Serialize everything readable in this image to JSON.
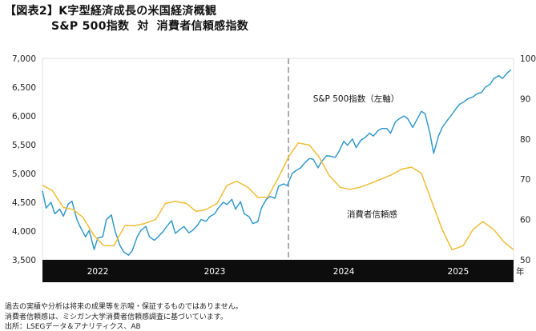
{
  "header": {
    "figure_label": "【図表2】",
    "title": "K字型経済成長の米国経済概観",
    "subtitle_left": "S&P 500指数",
    "subtitle_mid": "対",
    "subtitle_right": "消費者信頼感指数"
  },
  "chart_data": {
    "type": "line",
    "title": "K字型経済成長の米国経済概観",
    "subtitle": "S&P 500指数 対 消費者信頼感指数",
    "x_unit": "年",
    "x_ticks": [
      "2022",
      "2023",
      "2024",
      "2025"
    ],
    "x_range": [
      2022.0,
      2025.83
    ],
    "y_left": {
      "ticks": [
        "3,500",
        "4,000",
        "4,500",
        "5,000",
        "5,500",
        "6,000",
        "6,500",
        "7,000"
      ],
      "range": [
        3500,
        7000
      ]
    },
    "y_right": {
      "ticks": [
        "50",
        "60",
        "70",
        "80",
        "90",
        "100"
      ],
      "range": [
        50,
        100
      ]
    },
    "divider_x": 2024.0,
    "colors": {
      "sp500": "#3399cc",
      "sentiment": "#f2bc35",
      "axis_band": "#0d0d0d",
      "divider": "#999999"
    },
    "series": [
      {
        "name": "S&P 500指数（左軸）",
        "axis": "left",
        "x": [
          2022.0,
          2022.03,
          2022.07,
          2022.1,
          2022.14,
          2022.17,
          2022.21,
          2022.24,
          2022.28,
          2022.31,
          2022.35,
          2022.38,
          2022.42,
          2022.45,
          2022.49,
          2022.52,
          2022.56,
          2022.59,
          2022.63,
          2022.66,
          2022.7,
          2022.73,
          2022.77,
          2022.8,
          2022.84,
          2022.87,
          2022.91,
          2022.94,
          2022.98,
          2023.01,
          2023.05,
          2023.08,
          2023.12,
          2023.15,
          2023.19,
          2023.22,
          2023.26,
          2023.29,
          2023.33,
          2023.36,
          2023.4,
          2023.43,
          2023.47,
          2023.5,
          2023.54,
          2023.57,
          2023.61,
          2023.64,
          2023.68,
          2023.71,
          2023.75,
          2023.78,
          2023.82,
          2023.85,
          2023.89,
          2023.92,
          2023.96,
          2023.99,
          2024.03,
          2024.06,
          2024.1,
          2024.13,
          2024.17,
          2024.2,
          2024.24,
          2024.27,
          2024.31,
          2024.34,
          2024.38,
          2024.41,
          2024.45,
          2024.48,
          2024.52,
          2024.55,
          2024.59,
          2024.62,
          2024.66,
          2024.69,
          2024.73,
          2024.76,
          2024.8,
          2024.83,
          2024.87,
          2024.9,
          2024.94,
          2024.97,
          2025.01,
          2025.04,
          2025.08,
          2025.11,
          2025.15,
          2025.18,
          2025.22,
          2025.25,
          2025.29,
          2025.32,
          2025.36,
          2025.39,
          2025.43,
          2025.46,
          2025.5,
          2025.53,
          2025.57,
          2025.6,
          2025.64,
          2025.67,
          2025.71,
          2025.74,
          2025.78,
          2025.81
        ],
        "values": [
          4700,
          4400,
          4500,
          4300,
          4380,
          4260,
          4470,
          4520,
          4200,
          4060,
          3900,
          4010,
          3680,
          3880,
          3900,
          4200,
          4280,
          4000,
          3750,
          3640,
          3580,
          3660,
          3900,
          4010,
          4080,
          3900,
          3840,
          3900,
          3990,
          4080,
          4180,
          3960,
          4030,
          4080,
          3970,
          4010,
          4100,
          4200,
          4170,
          4250,
          4300,
          4400,
          4500,
          4460,
          4550,
          4380,
          4510,
          4300,
          4250,
          4130,
          4160,
          4400,
          4550,
          4600,
          4570,
          4780,
          4820,
          4790,
          5000,
          5050,
          5100,
          5180,
          5260,
          5250,
          5100,
          5210,
          5310,
          5300,
          5280,
          5380,
          5560,
          5490,
          5600,
          5450,
          5580,
          5620,
          5700,
          5650,
          5750,
          5780,
          5780,
          5700,
          5900,
          5950,
          6000,
          5950,
          5800,
          5920,
          6080,
          6040,
          5700,
          5350,
          5650,
          5800,
          5920,
          6000,
          6120,
          6200,
          6250,
          6300,
          6330,
          6380,
          6410,
          6500,
          6550,
          6650,
          6700,
          6650,
          6750,
          6800
        ]
      },
      {
        "name": "消費者信頼感",
        "axis": "right",
        "x": [
          2022.0,
          2022.08,
          2022.17,
          2022.25,
          2022.33,
          2022.42,
          2022.5,
          2022.58,
          2022.67,
          2022.75,
          2022.83,
          2022.92,
          2023.0,
          2023.08,
          2023.17,
          2023.25,
          2023.33,
          2023.42,
          2023.5,
          2023.58,
          2023.67,
          2023.75,
          2023.83,
          2023.92,
          2024.0,
          2024.08,
          2024.17,
          2024.25,
          2024.33,
          2024.42,
          2024.5,
          2024.58,
          2024.67,
          2024.75,
          2024.83,
          2024.92,
          2025.0,
          2025.08,
          2025.17,
          2025.25,
          2025.33,
          2025.42,
          2025.5,
          2025.58,
          2025.67,
          2025.75,
          2025.83
        ],
        "values": [
          68.5,
          67.2,
          63.0,
          62.5,
          60.5,
          56.0,
          53.5,
          53.5,
          58.5,
          58.5,
          59.0,
          60.0,
          64.0,
          64.5,
          64.0,
          62.0,
          62.5,
          64.0,
          68.5,
          69.5,
          68.0,
          65.5,
          65.5,
          70.5,
          75.5,
          79.0,
          78.5,
          75.5,
          71.0,
          68.0,
          67.5,
          68.0,
          69.0,
          70.0,
          71.0,
          72.5,
          73.0,
          71.5,
          64.0,
          57.5,
          52.5,
          53.5,
          57.5,
          59.5,
          57.5,
          54.5,
          52.5
        ]
      }
    ],
    "annotations": [
      {
        "text": "S&P 500指数（左軸）",
        "x": 2024.55,
        "y": 6250,
        "axis": "left"
      },
      {
        "text": "消費者信頼感",
        "x": 2024.68,
        "y": 4240,
        "axis": "left"
      }
    ]
  },
  "footnotes": [
    "過去の実績や分析は将来の成果等を示唆・保証するものではありません。",
    "消費者信頼感は、ミシガン大学消費者信頼感調査に基づいています。",
    "出所：LSEGデータ＆アナリティクス、AB"
  ]
}
